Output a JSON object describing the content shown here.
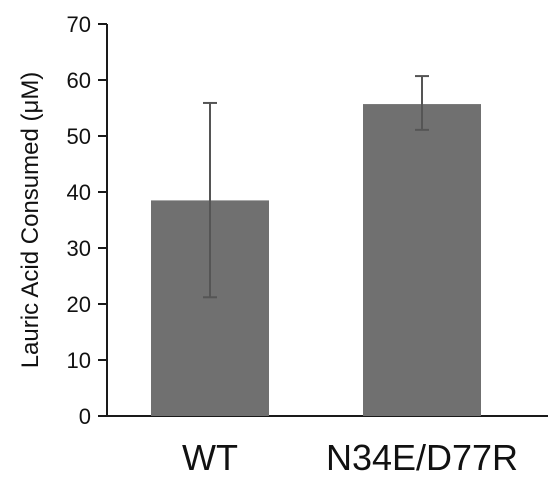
{
  "chart_data": {
    "type": "bar",
    "categories": [
      "WT",
      "N34E/D77R"
    ],
    "values": [
      38.5,
      55.7
    ],
    "error_low": [
      21.2,
      51.1
    ],
    "error_high": [
      55.9,
      60.7
    ],
    "title": "",
    "xlabel": "",
    "ylabel": "Lauric Acid Consumed (μM)",
    "ylim": [
      0,
      70
    ],
    "yticks": [
      0,
      10,
      20,
      30,
      40,
      50,
      60,
      70
    ],
    "grid": false,
    "colors": {
      "bar": "#707070",
      "error": "#555555",
      "axis": "#1a1a1a"
    }
  }
}
